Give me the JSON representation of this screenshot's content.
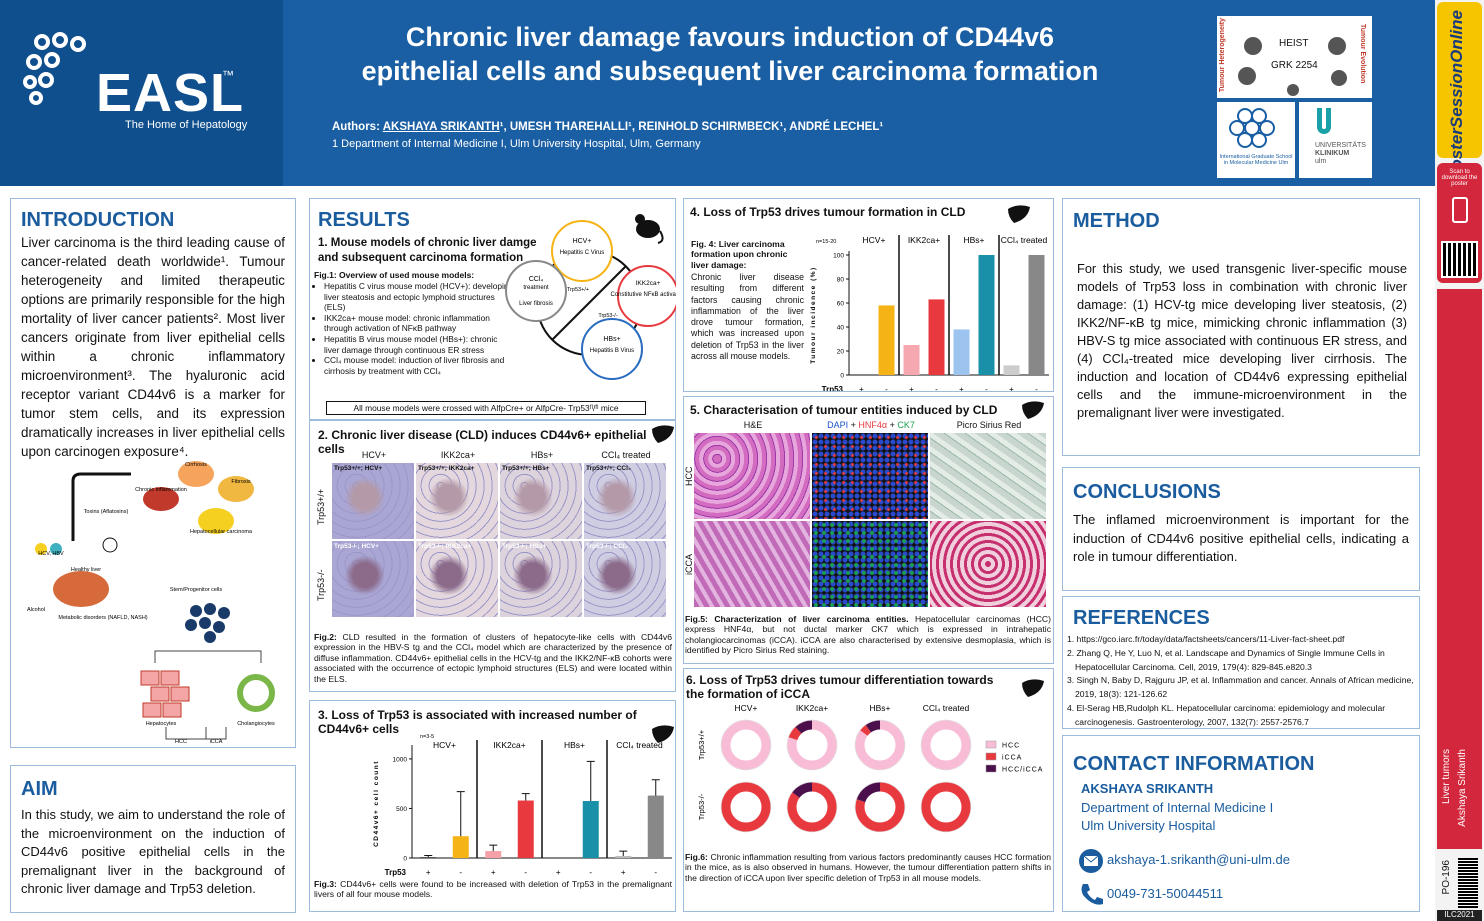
{
  "header": {
    "title": [
      "Chronic liver damage favours induction of CD44v6",
      "epithelial cells and subsequent liver carcinoma formation"
    ],
    "authors_label": "Authors:",
    "presenting_author": "AKSHAYA SRIKANTH",
    "coauthors": "¹, UMESH THAREHALLI¹, REINHOLD SCHIRMBECK¹, ANDRÉ LECHEL¹",
    "affiliation": "1 Department of Internal Medicine I, Ulm University Hospital, Ulm, Germany"
  },
  "logo": {
    "name": "EASL",
    "tm": "™",
    "tagline": "The Home of Hepatology"
  },
  "partner_logos": {
    "heist": "HEIST",
    "grk": "GRK 2254",
    "arc_left": "Tumour Heterogeneity",
    "arc_right": "Tumour Evolution",
    "school": "International Graduate School in Molecular Medicine Ulm",
    "clinic": [
      "UNIVERSITÄTS",
      "KLINIKUM",
      "ulm"
    ]
  },
  "sidebar": {
    "brand": "PosterSessionOnline",
    "scan": "Scan to download the poster",
    "topic": "Liver tumors",
    "author": "Akshaya Srikanth",
    "poster_id": "PO-196",
    "event": "ILC2021"
  },
  "introduction": {
    "heading": "INTRODUCTION",
    "text": "Liver carcinoma is the third leading cause of cancer-related death worldwide¹. Tumour heterogeneity and limited therapeutic options are primarily responsible for the high mortality of liver cancer patients². Most liver cancers originate from liver epithelial cells within a chronic inflammatory microenvironment³. The hyaluronic acid receptor variant CD44v6 is a marker for tumor stem cells, and its expression dramatically increases in liver epithelial cells upon carcinogen exposure⁴.",
    "diagram": {
      "toxins": "Toxins (Aflatoxins)",
      "viruses": "HCV, HBV",
      "healthy": "Healthy liver",
      "alcohol": "Alcohol",
      "metabolic": "Metabolic disorders (NAFLD, NASH)",
      "inflammation": "Chronic inflammation",
      "fibrosis": "Fibrosis",
      "cirrhosis": "Cirrhosis",
      "hcc_full": "Hepatocellular carcinoma",
      "stem": "Stem/Progenitor cells",
      "hepatocytes": "Hepatocytes",
      "cholangiocytes": "Cholangiocytes",
      "hcc": "HCC",
      "icca": "iCCA"
    }
  },
  "aim": {
    "heading": "AIM",
    "text": "In this study, we aim to understand the role of the microenvironment on the induction of CD44v6 positive epithelial cells in the premalignant liver in the background of chronic liver damage and Trp53 deletion."
  },
  "results": {
    "heading": "RESULTS",
    "section1": {
      "title": "1.   Mouse models of chronic liver damge and subsequent carcinoma formation",
      "fig_title": "Fig.1: Overview of used mouse models:",
      "bullets": [
        "Hepatitis C virus mouse model (HCV+): developing liver steatosis and ectopic lymphoid structures (ELS)",
        "IKK2ca+ mouse model: chronic inflammation through activation of NFκB pathway",
        "Hepatitis B virus mouse model (HBs+): chronic liver damage through continuous ER stress",
        "CCl₄ mouse model: induction of liver fibrosis and cirrhosis by treatment with CCl₄"
      ],
      "note": "All mouse models were crossed with AlfpCre+ or AlfpCre- Trp53ᶠˡ/ᶠˡ mice",
      "venn": {
        "hcv": "HCV+",
        "hcv_desc": "Hepatitis C Virus",
        "ikk": "IKK2ca+",
        "ikk_desc": "Constitutive NFκB activation",
        "hbs": "HBs+",
        "hbs_desc": "Hepatitis B Virus",
        "ccl": "CCl₄",
        "ccl_desc": "treatment",
        "fibrosis": "Liver fibrosis",
        "wt": "Trp53+/+",
        "ko": "Trp53-/-"
      }
    },
    "section2": {
      "title": "2. Chronic liver disease (CLD) induces CD44v6+ epithelial cells",
      "columns": [
        "HCV+",
        "IKK2ca+",
        "HBs+",
        "CCl₄ treated"
      ],
      "rows": [
        "Trp53+/+",
        "Trp53-/-"
      ],
      "panels": [
        "Trp53+/+; HCV+",
        "Trp53+/+; IKK2ca+",
        "Trp53+/+; HBs+",
        "Trp53+/+; CCl₄",
        "Trp53-/-; HCV+",
        "Trp53-/-; IKK2ca+",
        "Trp53-/-; HBs+",
        "Trp53-/-; CCl₄"
      ],
      "caption_label": "Fig.2:",
      "caption": " CLD resulted in the formation of clusters of hepatocyte-like cells with CD44v6 expression in the HBV-S tg and the CCl₄ model which are characterized by the presence of diffuse inflammation. CD44v6+ epithelial cells in the HCV-tg and the IKK2/NF-κB cohorts were associated with the occurrence of ectopic lymphoid structures (ELS) and were located within the ELS."
    },
    "section3": {
      "title": "3. Loss of Trp53 is associated with increased number of CD44v6+ cells",
      "caption_label": "Fig.3:",
      "caption": "   CD44v6+ cells were found to be increased with deletion of Trp53 in the premalignant livers of all four mouse models.",
      "chart": {
        "type": "bar",
        "n_label": "n=3-5",
        "ylabel": "CD44v6+ cell count",
        "groups": [
          "HCV+",
          "IKK2ca+",
          "HBs+",
          "CCl₄ treated"
        ],
        "genotype_label": "Trp53",
        "genotypes": [
          "+",
          "-",
          "+",
          "-",
          "+",
          "-",
          "+",
          "-"
        ],
        "values": [
          10,
          220,
          70,
          580,
          0,
          575,
          20,
          630
        ],
        "errors": [
          15,
          450,
          60,
          70,
          0,
          400,
          50,
          160
        ],
        "colors": [
          "#555555",
          "#f5b315",
          "#f6a0a8",
          "#e8393f",
          "#555555",
          "#1a8fa8",
          "#bbbbbb",
          "#888888"
        ],
        "ylim": [
          0,
          1100
        ],
        "yticks": [
          0,
          500,
          1000
        ]
      }
    },
    "section4": {
      "title": "4. Loss of Trp53 drives tumour formation in CLD",
      "caption_label": "Fig. 4: Liver carcinoma formation upon chronic liver damage:",
      "caption": "Chronic liver disease resulting from different factors causing chronic inflammation of the liver drove tumour formation, which was increased upon deletion of Trp53 in the liver across all mouse models.",
      "chart": {
        "type": "bar",
        "n_label": "n=15-20",
        "ylabel": "Tumour incidence (%)",
        "groups": [
          "HCV+",
          "IKK2ca+",
          "HBs+",
          "CCl₄ treated"
        ],
        "genotype_label": "Trp53",
        "genotypes": [
          "+",
          "-",
          "+",
          "-",
          "+",
          "-",
          "+",
          "-"
        ],
        "values": [
          0,
          58,
          25,
          63,
          38,
          100,
          8,
          100
        ],
        "colors": [
          "#f5b315",
          "#f5b315",
          "#f6a8b0",
          "#e8393f",
          "#9cc4ee",
          "#1a8fa8",
          "#cccccc",
          "#888888"
        ],
        "ylim": [
          0,
          100
        ],
        "yticks": [
          0,
          20,
          40,
          60,
          80,
          100
        ]
      }
    },
    "section5": {
      "title": "5. Characterisation of tumour entities induced by CLD",
      "columns": [
        "H&E",
        "DAPI + HNF4α + CK7",
        "Picro Sirius Red"
      ],
      "stains": [
        "DAPI",
        " + ",
        "HNF4α",
        " + ",
        "CK7"
      ],
      "rows": [
        "HCC",
        "iCCA"
      ],
      "caption_label": "Fig.5: Characterization of liver carcinoma entities.",
      "caption": " Hepatocellular carcinomas (HCC) express HNF4α, but not ductal marker CK7 which is expressed in intrahepatic cholangiocarcinomas (iCCA). iCCA are also characterised by extensive desmoplasia, which is identified by Picro Sirius Red staining."
    },
    "section6": {
      "title": "6. Loss of Trp53 drives tumour differentiation towards the formation of iCCA",
      "caption_label": "Fig.6:",
      "caption": " Chronic inflammation resulting from various factors predominantly causes HCC formation in the mice, as is also observed in humans. However, the tumour differentiation pattern shifts in the direction of iCCA upon liver specific deletion of Trp53 in all mouse models.",
      "chart": {
        "type": "donut",
        "columns": [
          "HCV+",
          "IKK2ca+",
          "HBs+",
          "CCl₄ treated"
        ],
        "rows": [
          "Trp53+/+",
          "Trp53-/-"
        ],
        "series": [
          {
            "name": "HCC",
            "color": "#f9bcd6"
          },
          {
            "name": "iCCA",
            "color": "#e8393f"
          },
          {
            "name": "HCC/iCCA",
            "color": "#4b0f4b"
          }
        ],
        "shares": [
          [
            [
              100,
              0,
              0
            ],
            [
              80,
              8,
              12
            ],
            [
              85,
              5,
              10
            ],
            [
              100,
              0,
              0
            ]
          ],
          [
            [
              0,
              100,
              0
            ],
            [
              0,
              85,
              15
            ],
            [
              0,
              80,
              20
            ],
            [
              0,
              100,
              0
            ]
          ]
        ]
      }
    }
  },
  "method": {
    "heading": "METHOD",
    "text": "For this study, we used transgenic liver-specific mouse models of Trp53 loss in combination with chronic liver damage: (1) HCV-tg mice developing liver steatosis, (2) IKK2/NF-κB tg mice, mimicking chronic inflammation (3) HBV-S tg mice associated with continuous ER stress, and (4) CCl₄-treated mice developing liver cirrhosis. The induction and location of CD44v6 expressing epithelial cells and the immune-microenvironment in the premalignant liver were investigated."
  },
  "conclusions": {
    "heading": "CONCLUSIONS",
    "text": "The inflamed microenvironment is important for the induction of CD44v6 positive epithelial cells, indicating a role in tumour differentiation."
  },
  "references": {
    "heading": "REFERENCES",
    "items": [
      "1. https://gco.iarc.fr/today/data/factsheets/cancers/11-Liver-fact-sheet.pdf",
      "2. Zhang Q, He Y, Luo N, et al. Landscape and Dynamics of Single Immune Cells in Hepatocellular Carcinoma. Cell, 2019, 179(4): 829-845.e820.3",
      "3. Singh N, Baby D, Rajguru JP, et al. Inflammation and cancer. Annals of African medicine, 2019, 18(3): 121-126.62",
      "4. El-Serag HB,Rudolph KL. Hepatocellular carcinoma: epidemiology and molecular carcinogenesis. Gastroenterology, 2007, 132(7): 2557-2576.7"
    ]
  },
  "contact": {
    "heading": "CONTACT INFORMATION",
    "name": "AKSHAYA SRIKANTH",
    "department": "Department of Internal Medicine I",
    "hospital": "Ulm University Hospital",
    "email": "akshaya-1.srikanth@uni-ulm.de",
    "phone": "0049-731-50044511"
  }
}
